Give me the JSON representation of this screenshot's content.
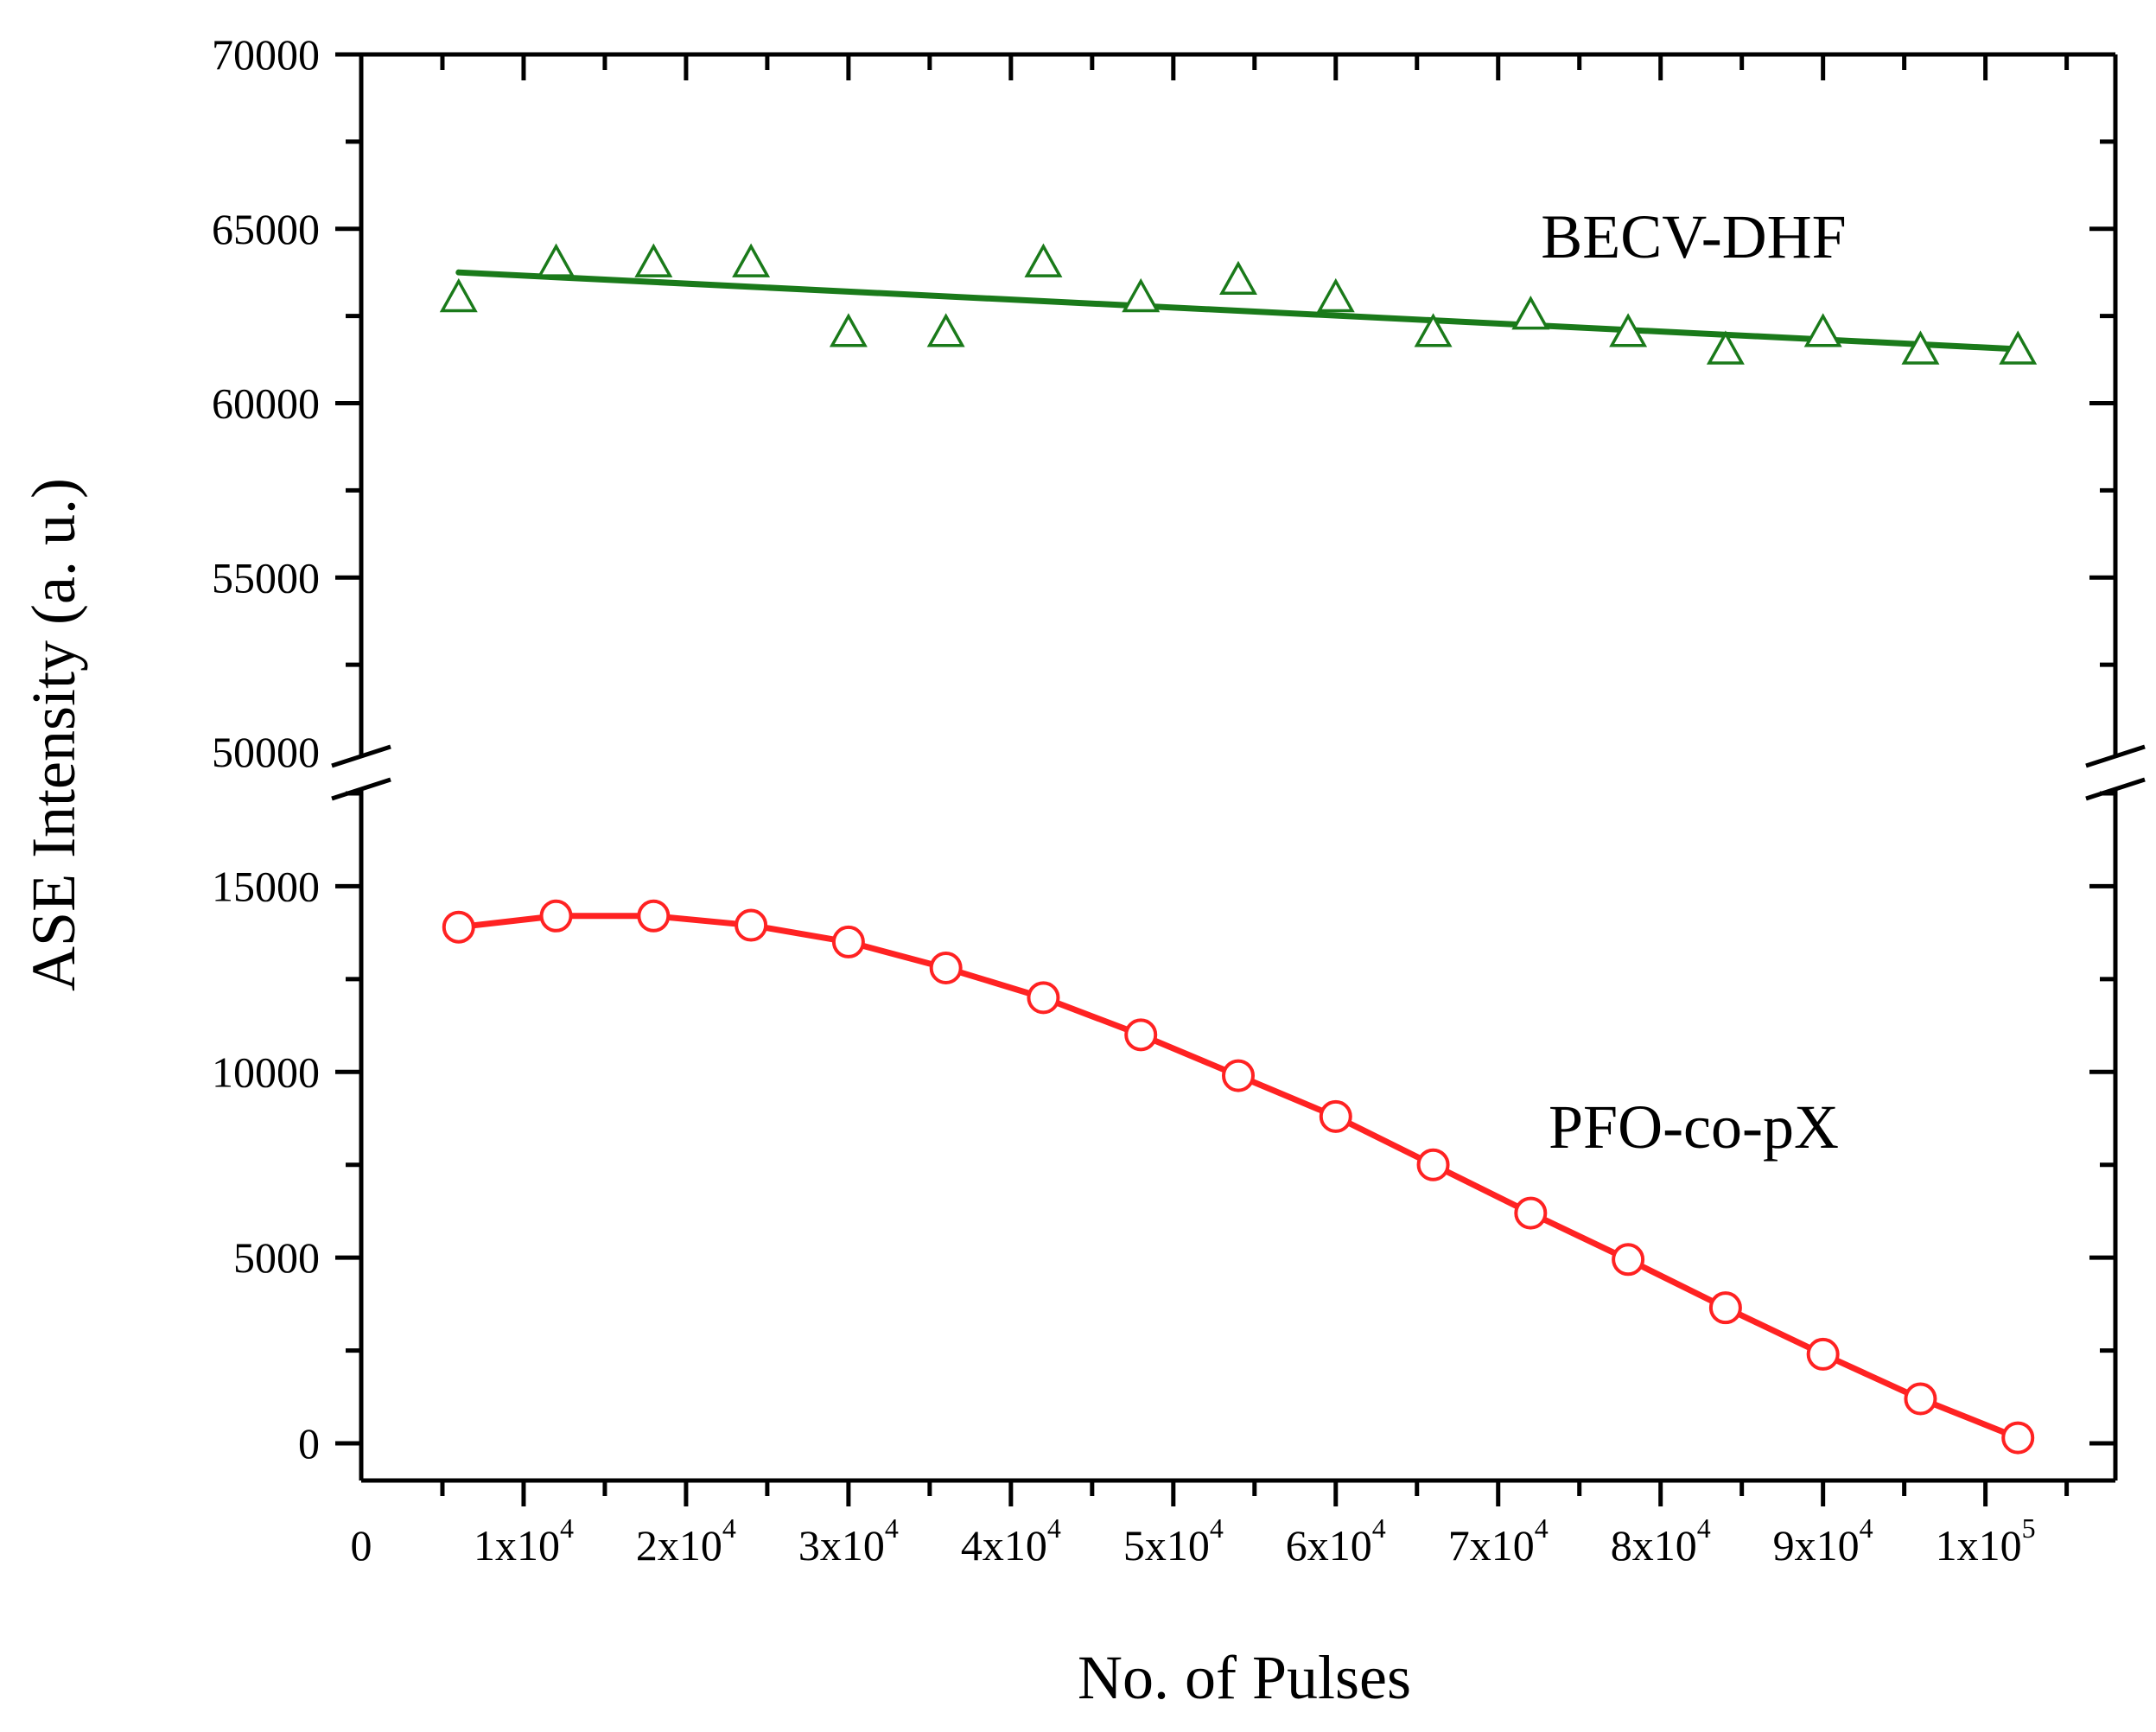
{
  "chart_data": {
    "type": "scatter",
    "title": "",
    "xlabel": "No. of Pulses",
    "ylabel": "ASE Intensity (a. u.)",
    "xlim": [
      0,
      108000
    ],
    "y_broken_axis": {
      "lower_range": [
        -1000,
        17500
      ],
      "upper_range": [
        50000,
        70000
      ]
    },
    "x_ticks": [
      {
        "value": 0,
        "label": "0"
      },
      {
        "value": 10000,
        "base": "1x10",
        "exp": "4"
      },
      {
        "value": 20000,
        "base": "2x10",
        "exp": "4"
      },
      {
        "value": 30000,
        "base": "3x10",
        "exp": "4"
      },
      {
        "value": 40000,
        "base": "4x10",
        "exp": "4"
      },
      {
        "value": 50000,
        "base": "5x10",
        "exp": "4"
      },
      {
        "value": 60000,
        "base": "6x10",
        "exp": "4"
      },
      {
        "value": 70000,
        "base": "7x10",
        "exp": "4"
      },
      {
        "value": 80000,
        "base": "8x10",
        "exp": "4"
      },
      {
        "value": 90000,
        "base": "9x10",
        "exp": "4"
      },
      {
        "value": 100000,
        "base": "1x10",
        "exp": "5"
      }
    ],
    "y_ticks_upper": [
      "50000",
      "55000",
      "60000",
      "65000",
      "70000"
    ],
    "y_ticks_lower": [
      "0",
      "5000",
      "10000",
      "15000"
    ],
    "series": [
      {
        "name": "BECV-DHF",
        "color": "#1a7a1a",
        "marker": "triangle-open",
        "panel": "upper",
        "x": [
          6000,
          12000,
          18000,
          24000,
          30000,
          36000,
          42000,
          48000,
          54000,
          60000,
          66000,
          72000,
          78000,
          84000,
          90000,
          96000,
          102000
        ],
        "y": [
          63000,
          64000,
          64000,
          64000,
          62000,
          62000,
          64000,
          63000,
          63500,
          63000,
          62000,
          62500,
          62000,
          61500,
          62000,
          61500,
          61500
        ],
        "fit_line": {
          "x": [
            6000,
            102000
          ],
          "y": [
            63750,
            61550
          ]
        }
      },
      {
        "name": "PFO-co-pX",
        "color": "#ff2222",
        "marker": "circle-open",
        "line": "connected",
        "panel": "lower",
        "x": [
          6000,
          12000,
          18000,
          24000,
          30000,
          36000,
          42000,
          48000,
          54000,
          60000,
          66000,
          72000,
          78000,
          84000,
          90000,
          96000,
          102000
        ],
        "y": [
          13900,
          14200,
          14200,
          13950,
          13500,
          12800,
          12000,
          11000,
          9900,
          8800,
          7500,
          6200,
          4950,
          3650,
          2400,
          1200,
          150
        ]
      }
    ]
  }
}
